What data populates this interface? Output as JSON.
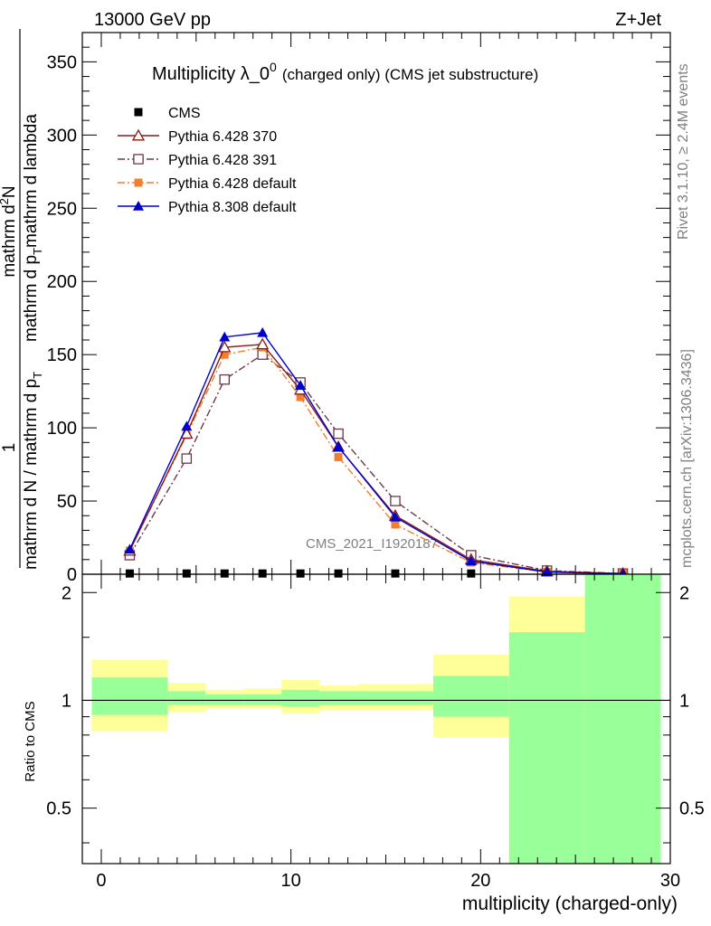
{
  "header": {
    "left": "13000 GeV pp",
    "right": "Z+Jet"
  },
  "side_labels": {
    "rivet": "Rivet 3.1.10, ≥ 2.4M events",
    "mcplots": "mcplots.cern.ch [arXiv:1306.3436]"
  },
  "chart_data": [
    {
      "type": "line",
      "title": "Multiplicity λ_0",
      "title_superscript": "0",
      "subtitle": "(charged only) (CMS jet substructure)",
      "watermark": "CMS_2021_I1920187",
      "ylabel_parts": {
        "numerator": "1",
        "denominator": "mathrm d N / mathrm d p",
        "denominator_sub": "T",
        "denominator_tail": "mathrm d p",
        "denominator_tail_sub": "T",
        "numerator2": "mathrm d",
        "numerator2_sup": "2",
        "numerator2_tail": "N",
        "lambda": "mathrm d lambda"
      },
      "ylabel_text": {
        "line1": "mathrm d",
        "sup2": "2",
        "line1b": "N",
        "line2": "mathrm d p",
        "sub_t": "T",
        "line2b": "mathrm d lambda",
        "one": "1",
        "den": "mathrm d N / mathrm d p",
        "den_sub": "T"
      },
      "xlim": [
        -1,
        30
      ],
      "ylim": [
        0,
        370
      ],
      "yticks": [
        0,
        50,
        100,
        150,
        200,
        250,
        300,
        350
      ],
      "legend_position": "top-left",
      "x": [
        1.5,
        4.5,
        6.5,
        8.5,
        10.5,
        12.5,
        15.5,
        19.5,
        23.5,
        27.5
      ],
      "series": [
        {
          "name": "CMS",
          "color": "#000000",
          "marker": "square-filled",
          "line": "none",
          "values": [
            0.5,
            0.5,
            0.5,
            0.5,
            0.5,
            0.5,
            0.5,
            0.5,
            0,
            0
          ]
        },
        {
          "name": "Pythia 6.428 370",
          "color": "#8b1a1a",
          "marker": "triangle-open",
          "line": "solid",
          "values": [
            16,
            96,
            155,
            157,
            126,
            87,
            40,
            10,
            2,
            0.5
          ]
        },
        {
          "name": "Pythia 6.428 391",
          "color": "#6b3a4a",
          "marker": "square-open",
          "line": "dashdot",
          "values": [
            13,
            79,
            133,
            150,
            131,
            96,
            50,
            13,
            2.5,
            0.5
          ]
        },
        {
          "name": "Pythia 6.428 default",
          "color": "#f07f30",
          "marker": "square-filled",
          "line": "dashdot",
          "values": [
            16,
            95,
            150,
            155,
            121,
            80,
            34,
            8,
            1.5,
            0.3
          ]
        },
        {
          "name": "Pythia 8.308 default",
          "color": "#0000cc",
          "marker": "triangle-filled",
          "line": "solid",
          "values": [
            17,
            101,
            162,
            165,
            129,
            87,
            39,
            9,
            1.5,
            0.3
          ]
        }
      ]
    },
    {
      "type": "area",
      "ylabel": "Ratio to CMS",
      "xlabel": "multiplicity (charged-only)",
      "xlim": [
        -1,
        30
      ],
      "xticks": [
        0,
        10,
        20,
        30
      ],
      "ylim": [
        0.35,
        2.25
      ],
      "yticks": [
        0.5,
        1,
        2
      ],
      "reference_line": 1,
      "bins": [
        {
          "lo": -0.5,
          "hi": 3.5,
          "yellow": [
            0.82,
            1.3
          ],
          "green": [
            0.91,
            1.16
          ]
        },
        {
          "lo": 3.5,
          "hi": 5.5,
          "yellow": [
            0.93,
            1.12
          ],
          "green": [
            0.97,
            1.06
          ]
        },
        {
          "lo": 5.5,
          "hi": 7.5,
          "yellow": [
            0.95,
            1.07
          ],
          "green": [
            0.97,
            1.04
          ]
        },
        {
          "lo": 7.5,
          "hi": 9.5,
          "yellow": [
            0.95,
            1.08
          ],
          "green": [
            0.97,
            1.04
          ]
        },
        {
          "lo": 9.5,
          "hi": 11.5,
          "yellow": [
            0.92,
            1.14
          ],
          "green": [
            0.96,
            1.07
          ]
        },
        {
          "lo": 11.5,
          "hi": 13.5,
          "yellow": [
            0.94,
            1.1
          ],
          "green": [
            0.97,
            1.06
          ]
        },
        {
          "lo": 13.5,
          "hi": 17.5,
          "yellow": [
            0.94,
            1.11
          ],
          "green": [
            0.97,
            1.06
          ]
        },
        {
          "lo": 17.5,
          "hi": 21.5,
          "yellow": [
            0.79,
            1.34
          ],
          "green": [
            0.9,
            1.17
          ]
        },
        {
          "lo": 21.5,
          "hi": 25.5,
          "yellow": [
            0.35,
            1.95
          ],
          "green": [
            0.35,
            1.55
          ],
          "yellow_gap": [
            0.55,
            1.55
          ]
        },
        {
          "lo": 25.5,
          "hi": 29.5,
          "yellow": [
            0.35,
            2.25
          ],
          "green": [
            0.35,
            2.25
          ]
        }
      ]
    }
  ]
}
